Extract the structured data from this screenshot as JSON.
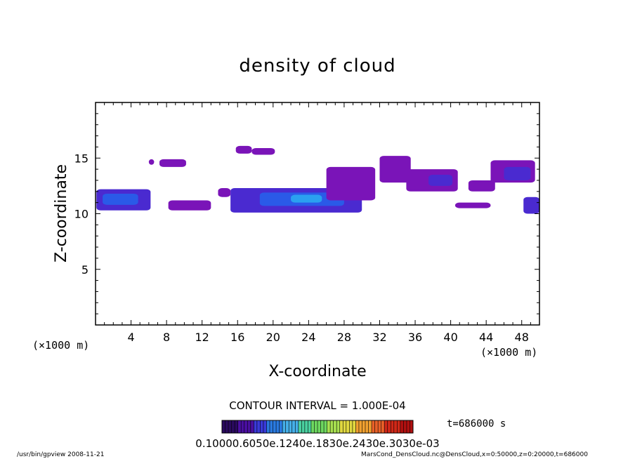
{
  "chart_data": {
    "type": "heatmap",
    "title": "density of cloud",
    "xlabel": "X-coordinate",
    "ylabel": "Z-coordinate",
    "x_unit": "(×1000 m)",
    "y_unit": "(×1000 m)",
    "xlim": [
      0,
      50
    ],
    "ylim": [
      0,
      20
    ],
    "x_ticks": [
      4,
      8,
      12,
      16,
      20,
      24,
      28,
      32,
      36,
      40,
      44,
      48
    ],
    "y_ticks": [
      5,
      10,
      15
    ],
    "contour_interval_label": "CONTOUR INTERVAL = 1.000E-04",
    "time_label": "t=686000 s",
    "colorbar_labels": "0.10000.6050e.1240e.1830e.2430e.3030e-03",
    "colorbar_colors": [
      "#2a0a5e",
      "#4a0fa0",
      "#3a3ad8",
      "#2a7ae0",
      "#46b0e8",
      "#4ad0a0",
      "#6ed860",
      "#a8e050",
      "#e0d840",
      "#f0a030",
      "#e86028",
      "#d02818",
      "#b01010"
    ],
    "field_colors": {
      "low": "#7a14b8",
      "mid": "#4a2ad0",
      "high": "#2a5ae8",
      "peak": "#2aa0f0"
    },
    "cloud_regions": [
      {
        "x": [
          0.1,
          6.2
        ],
        "z": [
          10.3,
          12.2
        ],
        "level": "mid"
      },
      {
        "x": [
          0.8,
          4.8
        ],
        "z": [
          10.8,
          11.8
        ],
        "level": "high"
      },
      {
        "x": [
          6.0,
          6.6
        ],
        "z": [
          14.4,
          14.9
        ],
        "level": "low"
      },
      {
        "x": [
          7.2,
          10.2
        ],
        "z": [
          14.2,
          14.9
        ],
        "level": "low"
      },
      {
        "x": [
          8.2,
          13.0
        ],
        "z": [
          10.3,
          11.2
        ],
        "level": "low"
      },
      {
        "x": [
          15.8,
          17.6
        ],
        "z": [
          15.4,
          16.1
        ],
        "level": "low"
      },
      {
        "x": [
          17.6,
          20.2
        ],
        "z": [
          15.3,
          15.9
        ],
        "level": "low"
      },
      {
        "x": [
          13.8,
          15.2
        ],
        "z": [
          11.5,
          12.3
        ],
        "level": "low"
      },
      {
        "x": [
          15.2,
          30.0
        ],
        "z": [
          10.1,
          12.3
        ],
        "level": "mid"
      },
      {
        "x": [
          18.5,
          28.0
        ],
        "z": [
          10.7,
          11.9
        ],
        "level": "high"
      },
      {
        "x": [
          22.0,
          25.5
        ],
        "z": [
          11.0,
          11.7
        ],
        "level": "peak"
      },
      {
        "x": [
          26.0,
          31.5
        ],
        "z": [
          11.2,
          14.2
        ],
        "level": "low"
      },
      {
        "x": [
          32.0,
          35.5
        ],
        "z": [
          12.8,
          15.2
        ],
        "level": "low"
      },
      {
        "x": [
          35.0,
          40.8
        ],
        "z": [
          12.0,
          14.0
        ],
        "level": "low"
      },
      {
        "x": [
          37.5,
          40.2
        ],
        "z": [
          12.5,
          13.5
        ],
        "level": "mid"
      },
      {
        "x": [
          42.0,
          45.0
        ],
        "z": [
          12.0,
          13.0
        ],
        "level": "low"
      },
      {
        "x": [
          40.5,
          44.5
        ],
        "z": [
          10.5,
          11.0
        ],
        "level": "low"
      },
      {
        "x": [
          44.5,
          49.5
        ],
        "z": [
          12.8,
          14.8
        ],
        "level": "low"
      },
      {
        "x": [
          46.0,
          49.0
        ],
        "z": [
          13.0,
          14.2
        ],
        "level": "mid"
      },
      {
        "x": [
          48.2,
          50.0
        ],
        "z": [
          10.0,
          11.5
        ],
        "level": "mid"
      }
    ]
  },
  "footer": {
    "program": "/usr/bin/gpview   2008-11-21",
    "source": "MarsCond_DensCloud.nc@DensCloud,x=0:50000,z=0:20000,t=686000"
  }
}
